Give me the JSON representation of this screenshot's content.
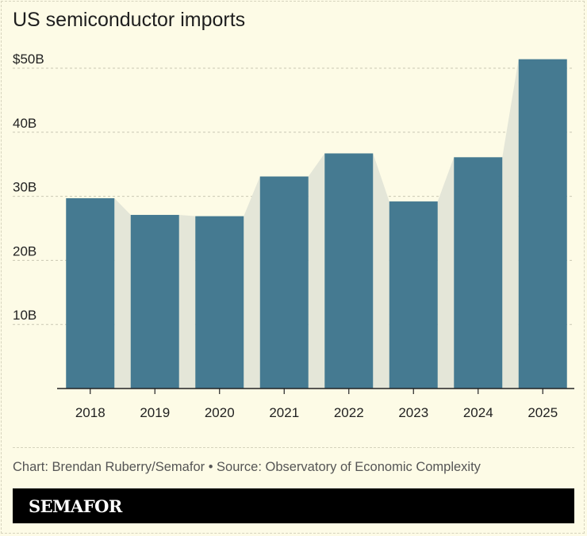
{
  "chart_data": {
    "type": "bar",
    "title": "US semiconductor imports",
    "categories": [
      "2018",
      "2019",
      "2020",
      "2021",
      "2022",
      "2023",
      "2024",
      "2025"
    ],
    "series": [
      {
        "values": [
          29.7,
          27.1,
          26.9,
          33.1,
          36.7,
          29.2,
          36.1,
          51.4
        ]
      }
    ],
    "xlabel": "",
    "ylabel": "",
    "ylim": [
      0,
      50
    ],
    "yticks": [
      {
        "value": 10,
        "label": "10B"
      },
      {
        "value": 20,
        "label": "20B"
      },
      {
        "value": 30,
        "label": "30B"
      },
      {
        "value": 40,
        "label": "40B"
      },
      {
        "value": 50,
        "label": "$50B"
      }
    ],
    "grid": true,
    "bar_color": "#457a91",
    "connector_color": "#e4e6d8"
  },
  "credit": "Chart: Brendan Ruberry/Semafor • Source: Observatory of Economic Complexity",
  "brand": "SEMAFOR"
}
